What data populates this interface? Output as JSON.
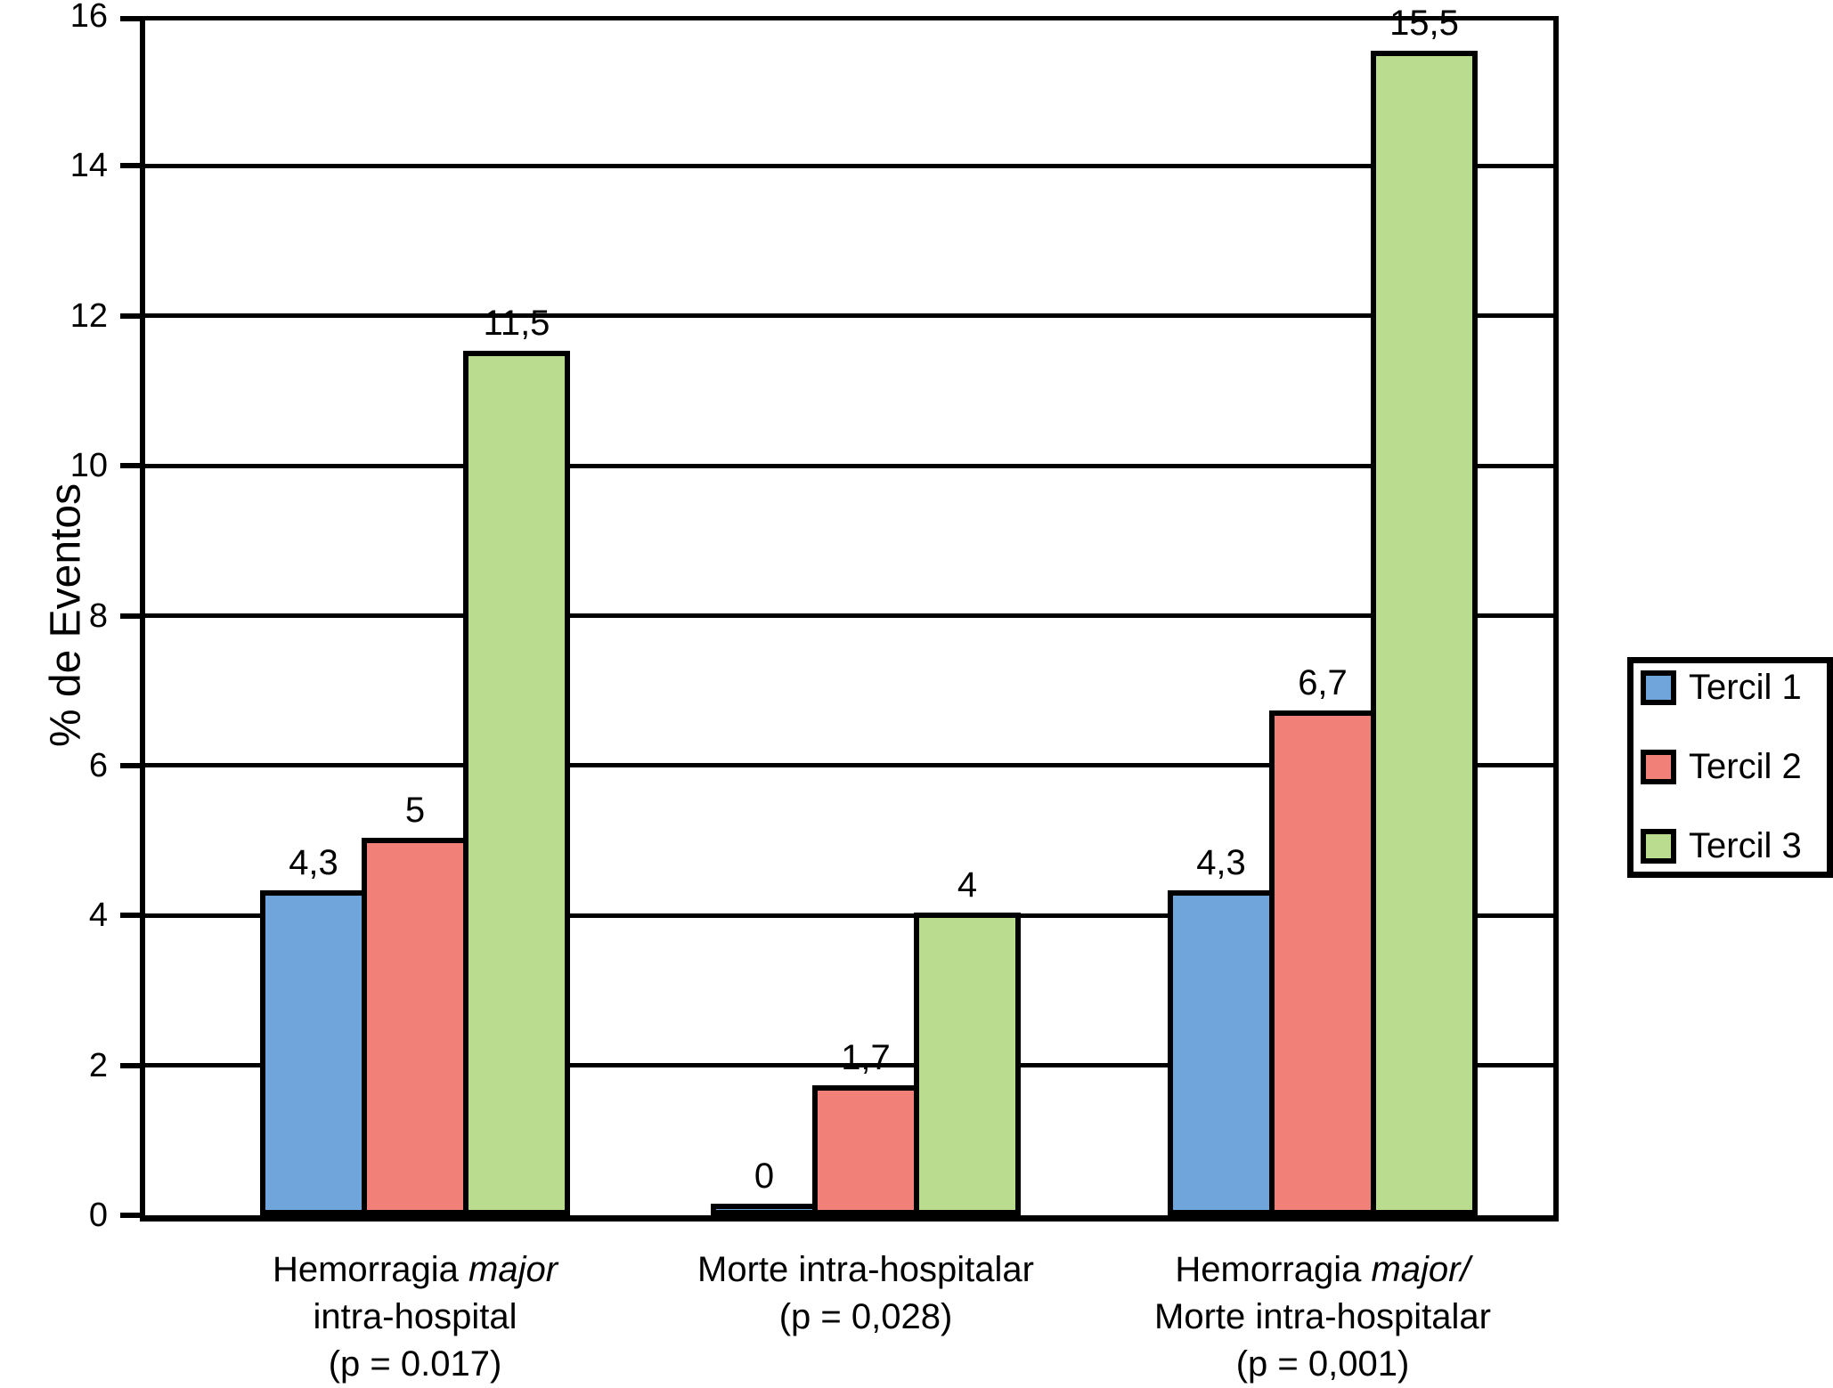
{
  "chart_data": {
    "type": "bar",
    "title": "",
    "xlabel": "",
    "ylabel": "% de Eventos",
    "ylim": [
      0,
      16
    ],
    "yticks": [
      0,
      2,
      4,
      6,
      8,
      10,
      12,
      14,
      16
    ],
    "grid": "horizontal black gridlines every 2 units",
    "legend_position": "outside right",
    "background": "#FFFFFF",
    "axis_color": "#000000",
    "bar_border_color": "#000000",
    "categories": [
      {
        "lines": [
          [
            {
              "t": "Hemorragia ",
              "i": false
            },
            {
              "t": "major",
              "i": true
            }
          ],
          [
            {
              "t": "intra-hospital",
              "i": false
            }
          ],
          [
            {
              "t": "(p = 0.017)",
              "i": false
            }
          ]
        ]
      },
      {
        "lines": [
          [
            {
              "t": "Morte intra-hospitalar",
              "i": false
            }
          ],
          [
            {
              "t": "(p = 0,028)",
              "i": false
            }
          ]
        ]
      },
      {
        "lines": [
          [
            {
              "t": "Hemorragia ",
              "i": false
            },
            {
              "t": "major/",
              "i": true
            }
          ],
          [
            {
              "t": "Morte intra-hospitalar",
              "i": false
            }
          ],
          [
            {
              "t": "(p = 0,001)",
              "i": false
            }
          ]
        ]
      }
    ],
    "series": [
      {
        "name": "Tercil 1",
        "color": "#6FA5DB",
        "values": [
          4.3,
          0,
          4.3
        ],
        "value_labels": [
          "4,3",
          "0",
          "4,3"
        ]
      },
      {
        "name": "Tercil 2",
        "color": "#F08078",
        "values": [
          5,
          1.7,
          6.7
        ],
        "value_labels": [
          "5",
          "1,7",
          "6,7"
        ]
      },
      {
        "name": "Tercil 3",
        "color": "#BADC8E",
        "values": [
          11.5,
          4,
          15.5
        ],
        "value_labels": [
          "11,5",
          "4",
          "15,5"
        ]
      }
    ]
  }
}
